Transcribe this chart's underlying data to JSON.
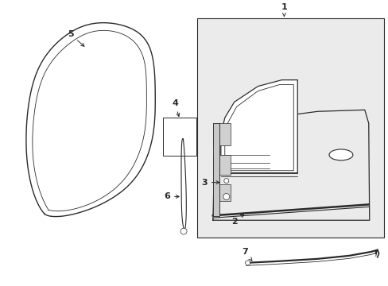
{
  "bg_color": "#ffffff",
  "line_color": "#2a2a2a",
  "fill_light": "#ebebeb",
  "fill_white": "#ffffff",
  "fig_width": 4.89,
  "fig_height": 3.6,
  "dpi": 100
}
